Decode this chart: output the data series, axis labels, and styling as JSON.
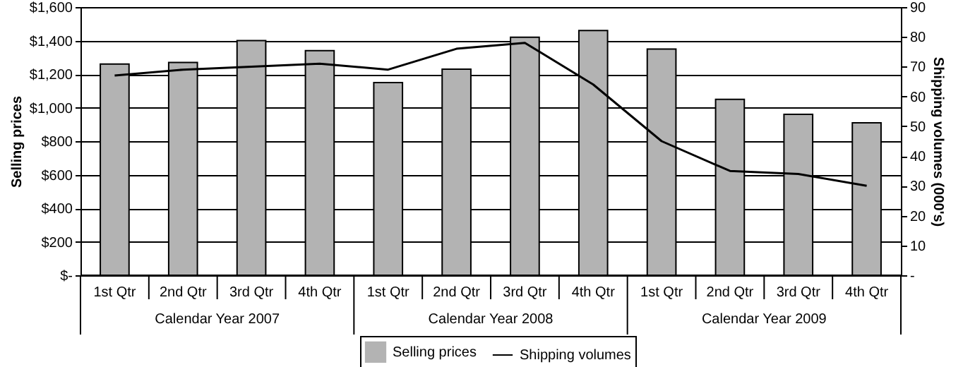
{
  "chart_data": {
    "type": "bar",
    "categories": [
      "1st Qtr",
      "2nd Qtr",
      "3rd Qtr",
      "4th Qtr",
      "1st Qtr",
      "2nd Qtr",
      "3rd Qtr",
      "4th Qtr",
      "1st Qtr",
      "2nd Qtr",
      "3rd Qtr",
      "4th Qtr"
    ],
    "series": [
      {
        "name": "Selling prices",
        "color": "#b3b3b3",
        "values": [
          1260,
          1270,
          1400,
          1340,
          1150,
          1230,
          1420,
          1460,
          1350,
          1050,
          960,
          910
        ]
      },
      {
        "name": "Shipping volumes",
        "type": "line",
        "axis": "y2",
        "color": "#000000",
        "values": [
          67,
          69,
          70,
          71,
          69,
          76,
          78,
          64,
          45,
          35,
          34,
          30
        ]
      }
    ],
    "annotations": [
      "Calendar Year 2007",
      "Calendar Year 2008",
      "Calendar Year 2009"
    ],
    "ylabel": "Selling prices",
    "y2label": "Shipping volumes (000's)",
    "ylim": [
      0,
      1600
    ],
    "yticks": [
      {
        "value": 0,
        "label": "$-"
      },
      {
        "value": 200,
        "label": "$200"
      },
      {
        "value": 400,
        "label": "$400"
      },
      {
        "value": 600,
        "label": "$600"
      },
      {
        "value": 800,
        "label": "$800"
      },
      {
        "value": 1000,
        "label": "$1,000"
      },
      {
        "value": 1200,
        "label": "$1,200"
      },
      {
        "value": 1400,
        "label": "$1,400"
      },
      {
        "value": 1600,
        "label": "$1,600"
      }
    ],
    "y2lim": [
      0,
      90
    ],
    "y2ticks": [
      {
        "value": 0,
        "label": "-"
      },
      10,
      20,
      30,
      40,
      50,
      60,
      70,
      80,
      90
    ],
    "grid": "y",
    "legend": "bottom"
  }
}
